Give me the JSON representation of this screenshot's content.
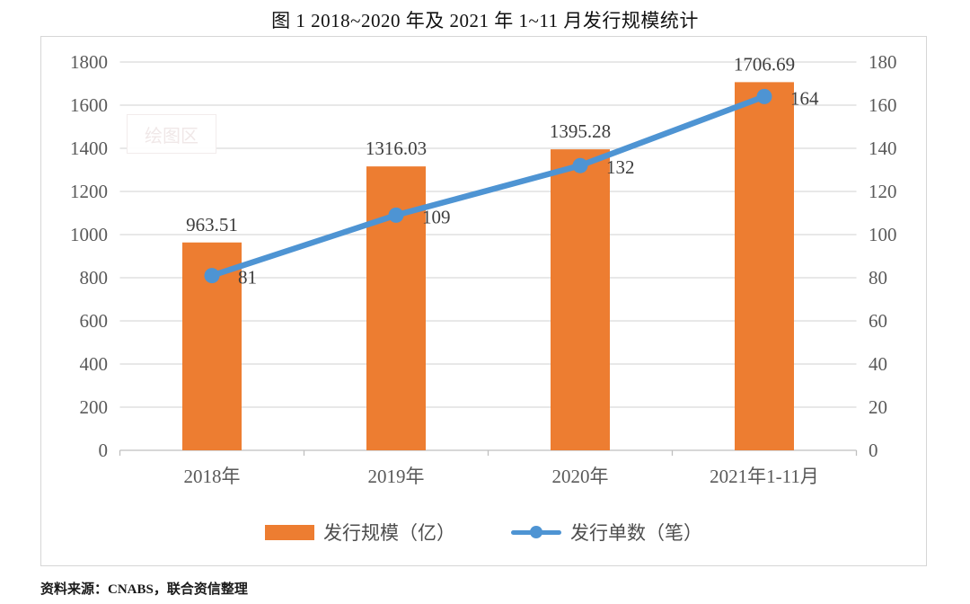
{
  "title": "图 1  2018~2020 年及 2021 年 1~11 月发行规模统计",
  "source": "资料来源：CNABS，联合资信整理",
  "watermark": "绘图区",
  "colors": {
    "bar": "#ed7d31",
    "line": "#4e94d3",
    "grid": "#d9d9d9",
    "axis_line": "#bfbfbf",
    "axis_text": "#595959",
    "data_label_text": "#3d3d3d",
    "legend_text": "#4d4d4d"
  },
  "chart_data": {
    "type": "bar",
    "subtype": "bar-line-combo",
    "title": "图 1  2018~2020 年及 2021 年 1~11 月发行规模统计",
    "categories": [
      "2018年",
      "2019年",
      "2020年",
      "2021年1-11月"
    ],
    "series": [
      {
        "name": "发行规模（亿）",
        "type": "bar",
        "axis": "left",
        "values": [
          963.51,
          1316.03,
          1395.28,
          1706.69
        ],
        "labels": [
          "963.51",
          "1316.03",
          "1395.28",
          "1706.69"
        ],
        "color": "#ed7d31"
      },
      {
        "name": "发行单数（笔）",
        "type": "line",
        "axis": "right",
        "values": [
          81,
          109,
          132,
          164
        ],
        "labels": [
          "81",
          "109",
          "132",
          "164"
        ],
        "color": "#4e94d3"
      }
    ],
    "left_axis": {
      "min": 0,
      "max": 1800,
      "step": 200,
      "ticks": [
        0,
        200,
        400,
        600,
        800,
        1000,
        1200,
        1400,
        1600,
        1800
      ]
    },
    "right_axis": {
      "min": 0,
      "max": 180,
      "step": 20,
      "ticks": [
        0,
        20,
        40,
        60,
        80,
        100,
        120,
        140,
        160,
        180
      ]
    },
    "grid": true,
    "legend_position": "bottom",
    "xlabel": "",
    "ylabel_left": "",
    "ylabel_right": ""
  }
}
